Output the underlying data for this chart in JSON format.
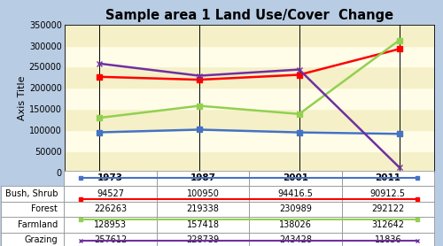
{
  "title": "Sample area 1 Land Use/Cover  Change",
  "ylabel": "Axis Title",
  "years": [
    1973,
    1987,
    2001,
    2011
  ],
  "series": [
    {
      "name": "Bush, Shrub",
      "values": [
        94527,
        100950,
        94416.5,
        90912.5
      ],
      "color": "#4472C4",
      "marker": "s",
      "markersize": 4
    },
    {
      "name": "Forest",
      "values": [
        226263,
        219338,
        230989,
        292122
      ],
      "color": "#FF0000",
      "marker": "s",
      "markersize": 4
    },
    {
      "name": "Farmland",
      "values": [
        128953,
        157418,
        138026,
        312642
      ],
      "color": "#92D050",
      "marker": "s",
      "markersize": 4
    },
    {
      "name": "Grazing",
      "values": [
        257612,
        228739,
        243428,
        11836
      ],
      "color": "#7030A0",
      "marker": "x",
      "markersize": 5
    }
  ],
  "ylim": [
    0,
    350000
  ],
  "yticks": [
    0,
    50000,
    100000,
    150000,
    200000,
    250000,
    300000,
    350000
  ],
  "plot_bg_color": "#FFFDE8",
  "outer_bg_color": "#B8CCE4",
  "stripe_color": "#F5F0C8",
  "table_data": [
    [
      "94527",
      "100950",
      "94416.5",
      "90912.5"
    ],
    [
      "226263",
      "219338",
      "230989",
      "292122"
    ],
    [
      "128953",
      "157418",
      "138026",
      "312642"
    ],
    [
      "257612",
      "228739",
      "243428",
      "11836"
    ]
  ],
  "series_colors": [
    "#4472C4",
    "#FF0000",
    "#92D050",
    "#7030A0"
  ],
  "series_markers": [
    "s",
    "s",
    "s",
    "x"
  ],
  "series_names": [
    "Bush, Shrub",
    "Forest",
    "Farmland",
    "Grazing"
  ],
  "col_headers": [
    "1973",
    "1987",
    "2001",
    "2011"
  ]
}
